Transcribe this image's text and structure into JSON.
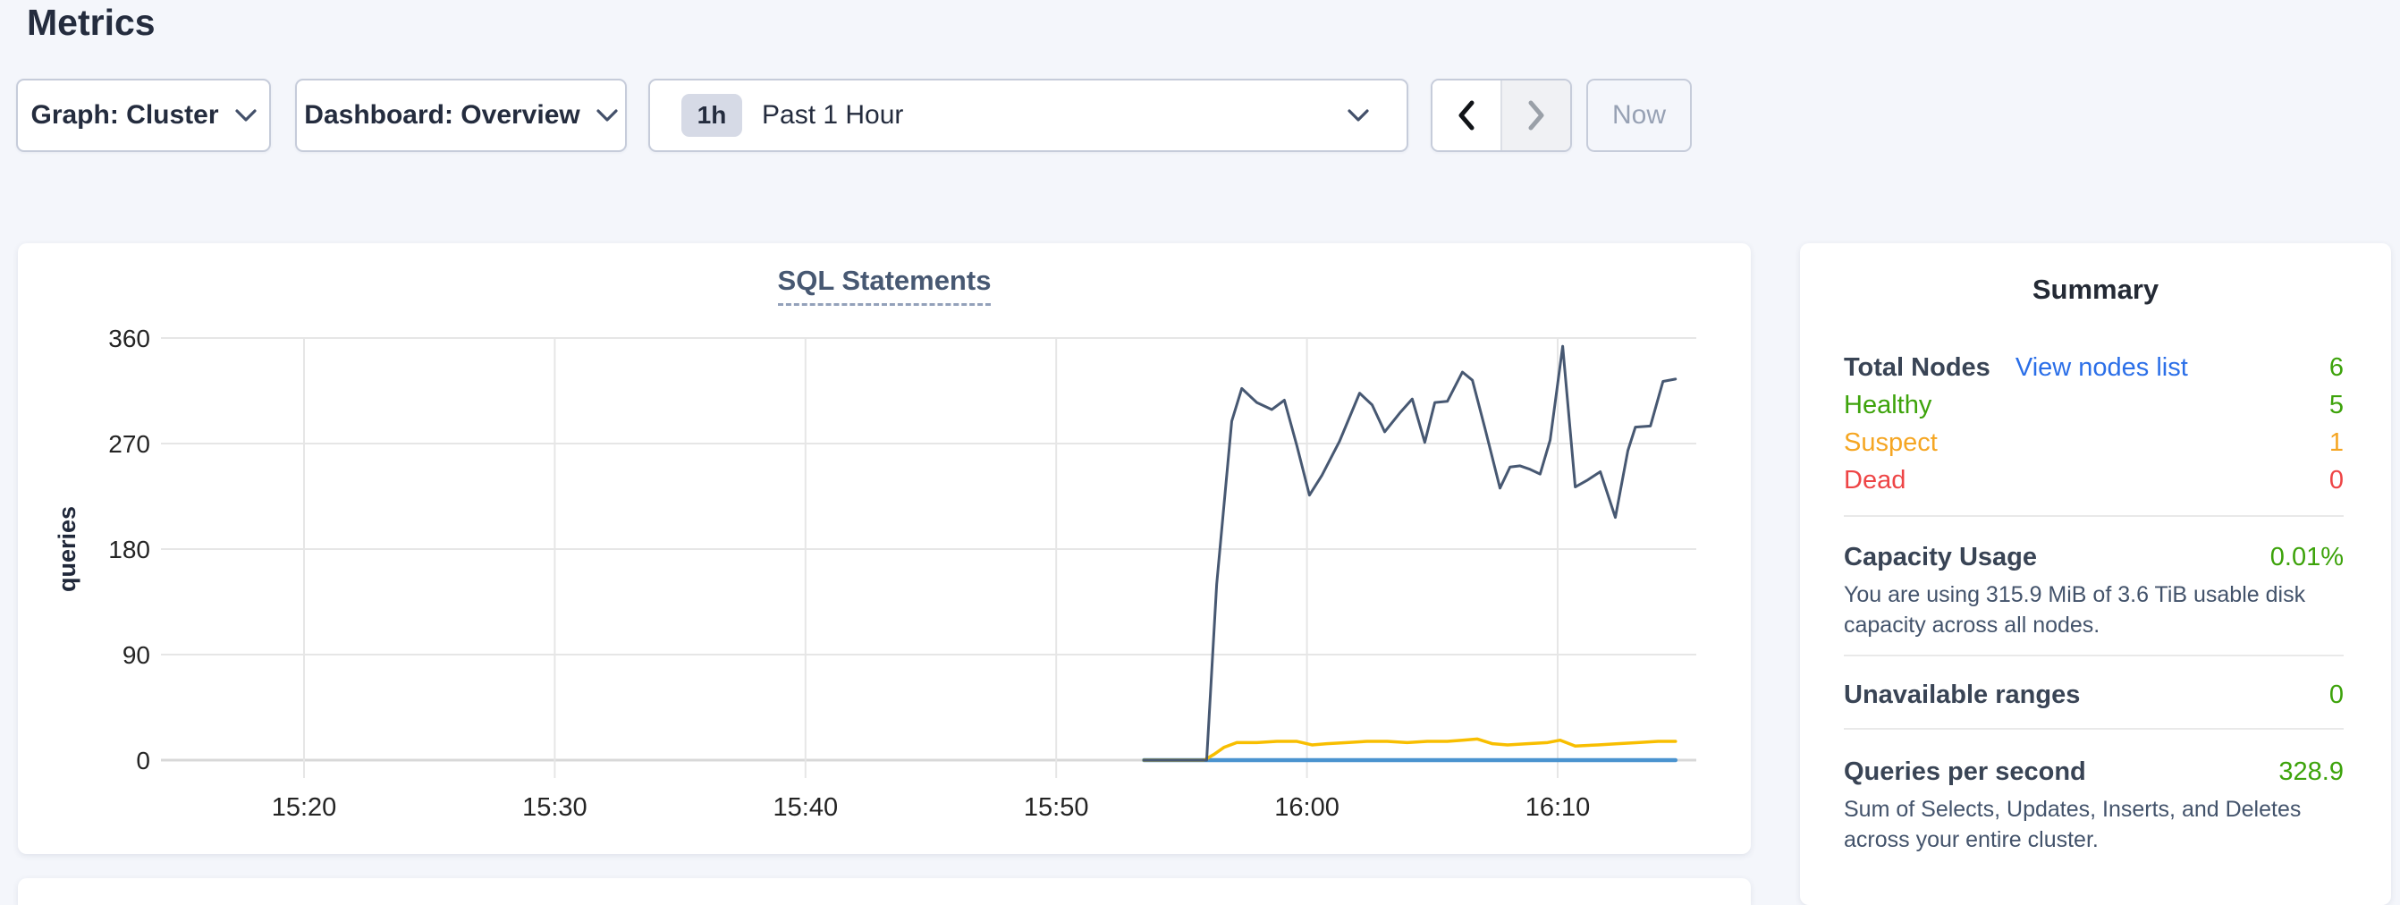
{
  "page": {
    "title": "Metrics"
  },
  "controls": {
    "graph_selector": {
      "label": "Graph: Cluster"
    },
    "dashboard_selector": {
      "label": "Dashboard: Overview"
    },
    "time_picker": {
      "badge": "1h",
      "label": "Past 1 Hour"
    },
    "now_button": {
      "label": "Now"
    }
  },
  "summary": {
    "heading": "Summary",
    "total_nodes": {
      "label": "Total Nodes",
      "link": "View nodes list",
      "value": "6"
    },
    "healthy": {
      "label": "Healthy",
      "value": "5"
    },
    "suspect": {
      "label": "Suspect",
      "value": "1"
    },
    "dead": {
      "label": "Dead",
      "value": "0"
    },
    "capacity": {
      "label": "Capacity Usage",
      "value": "0.01%",
      "description": "You are using 315.9 MiB of 3.6 TiB usable disk capacity across all nodes."
    },
    "unavailable_ranges": {
      "label": "Unavailable ranges",
      "value": "0"
    },
    "queries_per_second": {
      "label": "Queries per second",
      "value": "328.9",
      "description": "Sum of Selects, Updates, Inserts, and Deletes across your entire cluster."
    }
  },
  "colors": {
    "page_background": "#f4f6fb",
    "card_background": "#ffffff",
    "accent_link_blue": "#2b6fe8",
    "status_green": "#3da30b",
    "status_orange": "#f5a623",
    "status_red": "#ee4546",
    "series_navy": "#475872",
    "series_yellow": "#f8be00",
    "series_blue": "#4a93cf",
    "gridline": "#e6e6e6",
    "baseline": "#d8d8d8",
    "tick_text": "#242424"
  },
  "chart_data": {
    "type": "line",
    "title": "SQL Statements",
    "ylabel": "queries",
    "x_unit": "minutes_after_15:00",
    "xlim": [
      14.3,
      75.5
    ],
    "ylim": [
      0,
      372
    ],
    "grid": true,
    "legend": "none",
    "yticks": [
      0,
      90,
      180,
      270,
      360
    ],
    "xticks": [
      {
        "t": 20,
        "label": "15:20"
      },
      {
        "t": 30,
        "label": "15:30"
      },
      {
        "t": 40,
        "label": "15:40"
      },
      {
        "t": 50,
        "label": "15:50"
      },
      {
        "t": 60,
        "label": "16:00"
      },
      {
        "t": 70,
        "label": "16:10"
      }
    ],
    "series": [
      {
        "name": "series-blue",
        "color": "#4a93cf",
        "width": 4.5,
        "points": [
          [
            53.5,
            0
          ],
          [
            74.7,
            0
          ]
        ]
      },
      {
        "name": "series-yellow",
        "color": "#f8be00",
        "width": 3.5,
        "points": [
          [
            53.5,
            0
          ],
          [
            55.9,
            0
          ],
          [
            56.3,
            5
          ],
          [
            56.7,
            11
          ],
          [
            57.2,
            15
          ],
          [
            58.0,
            15
          ],
          [
            58.8,
            16
          ],
          [
            59.6,
            16
          ],
          [
            60.2,
            13
          ],
          [
            60.8,
            14
          ],
          [
            61.6,
            15
          ],
          [
            62.4,
            16
          ],
          [
            63.2,
            16
          ],
          [
            64.0,
            15
          ],
          [
            64.8,
            16
          ],
          [
            65.6,
            16
          ],
          [
            66.2,
            17
          ],
          [
            66.8,
            18
          ],
          [
            67.4,
            14
          ],
          [
            68.0,
            13
          ],
          [
            68.8,
            14
          ],
          [
            69.6,
            15
          ],
          [
            70.1,
            17
          ],
          [
            70.7,
            12
          ],
          [
            71.6,
            13
          ],
          [
            72.4,
            14
          ],
          [
            73.2,
            15
          ],
          [
            74.0,
            16
          ],
          [
            74.7,
            16
          ]
        ]
      },
      {
        "name": "series-navy",
        "color": "#475872",
        "width": 3,
        "points": [
          [
            53.5,
            0
          ],
          [
            56.0,
            0
          ],
          [
            56.4,
            150
          ],
          [
            57.0,
            289
          ],
          [
            57.4,
            317
          ],
          [
            58.0,
            305
          ],
          [
            58.6,
            299
          ],
          [
            59.1,
            307
          ],
          [
            59.6,
            268
          ],
          [
            60.1,
            226
          ],
          [
            60.6,
            243
          ],
          [
            61.3,
            272
          ],
          [
            62.1,
            313
          ],
          [
            62.6,
            303
          ],
          [
            63.1,
            280
          ],
          [
            63.7,
            296
          ],
          [
            64.2,
            308
          ],
          [
            64.7,
            271
          ],
          [
            65.1,
            305
          ],
          [
            65.6,
            306
          ],
          [
            66.2,
            331
          ],
          [
            66.6,
            324
          ],
          [
            67.1,
            283
          ],
          [
            67.7,
            232
          ],
          [
            68.1,
            250
          ],
          [
            68.5,
            251
          ],
          [
            68.9,
            248
          ],
          [
            69.3,
            244
          ],
          [
            69.7,
            273
          ],
          [
            70.2,
            353
          ],
          [
            70.7,
            233
          ],
          [
            71.2,
            239
          ],
          [
            71.7,
            246
          ],
          [
            72.3,
            207
          ],
          [
            72.8,
            264
          ],
          [
            73.1,
            284
          ],
          [
            73.7,
            285
          ],
          [
            74.2,
            323
          ],
          [
            74.7,
            325
          ]
        ]
      }
    ]
  }
}
